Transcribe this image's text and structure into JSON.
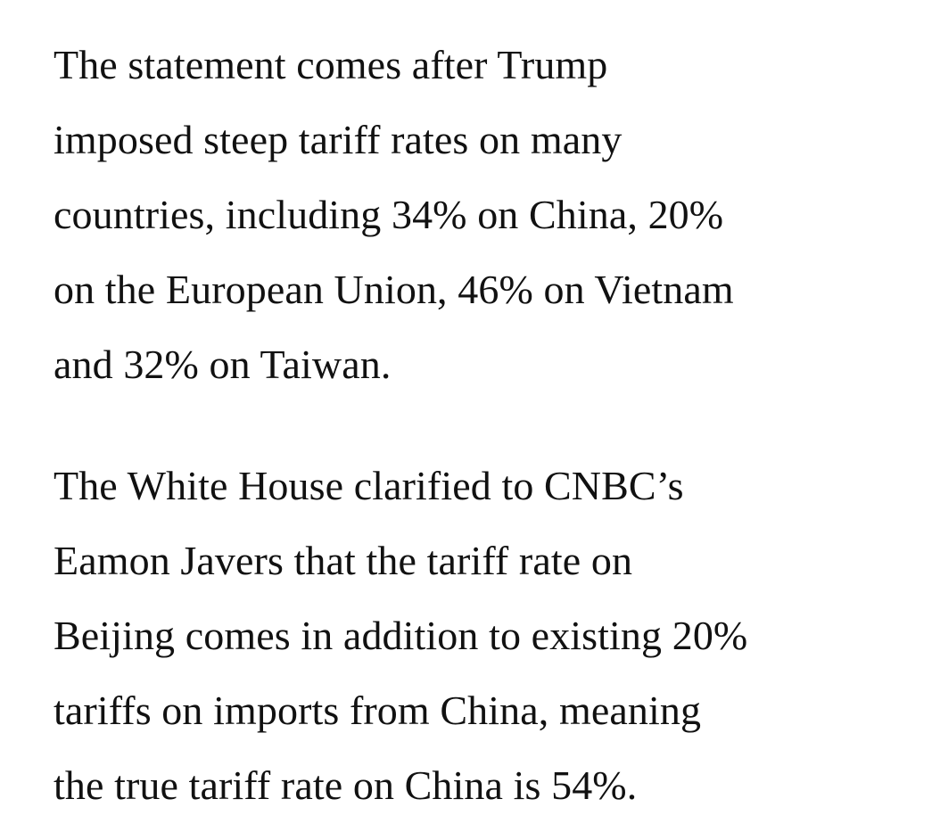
{
  "article": {
    "paragraphs": [
      {
        "lines": [
          "The statement comes after Trump",
          "imposed steep tariff rates on many",
          "countries, including 34% on China, 20%",
          "on the European Union, 46% on Vietnam",
          "and 32% on Taiwan."
        ]
      },
      {
        "lines": [
          "The White House clarified to CNBC’s",
          "Eamon Javers that the tariff rate on",
          "Beijing comes in addition to existing 20%",
          "tariffs on imports from China, meaning",
          "the true tariff rate on China is 54%."
        ]
      }
    ]
  }
}
